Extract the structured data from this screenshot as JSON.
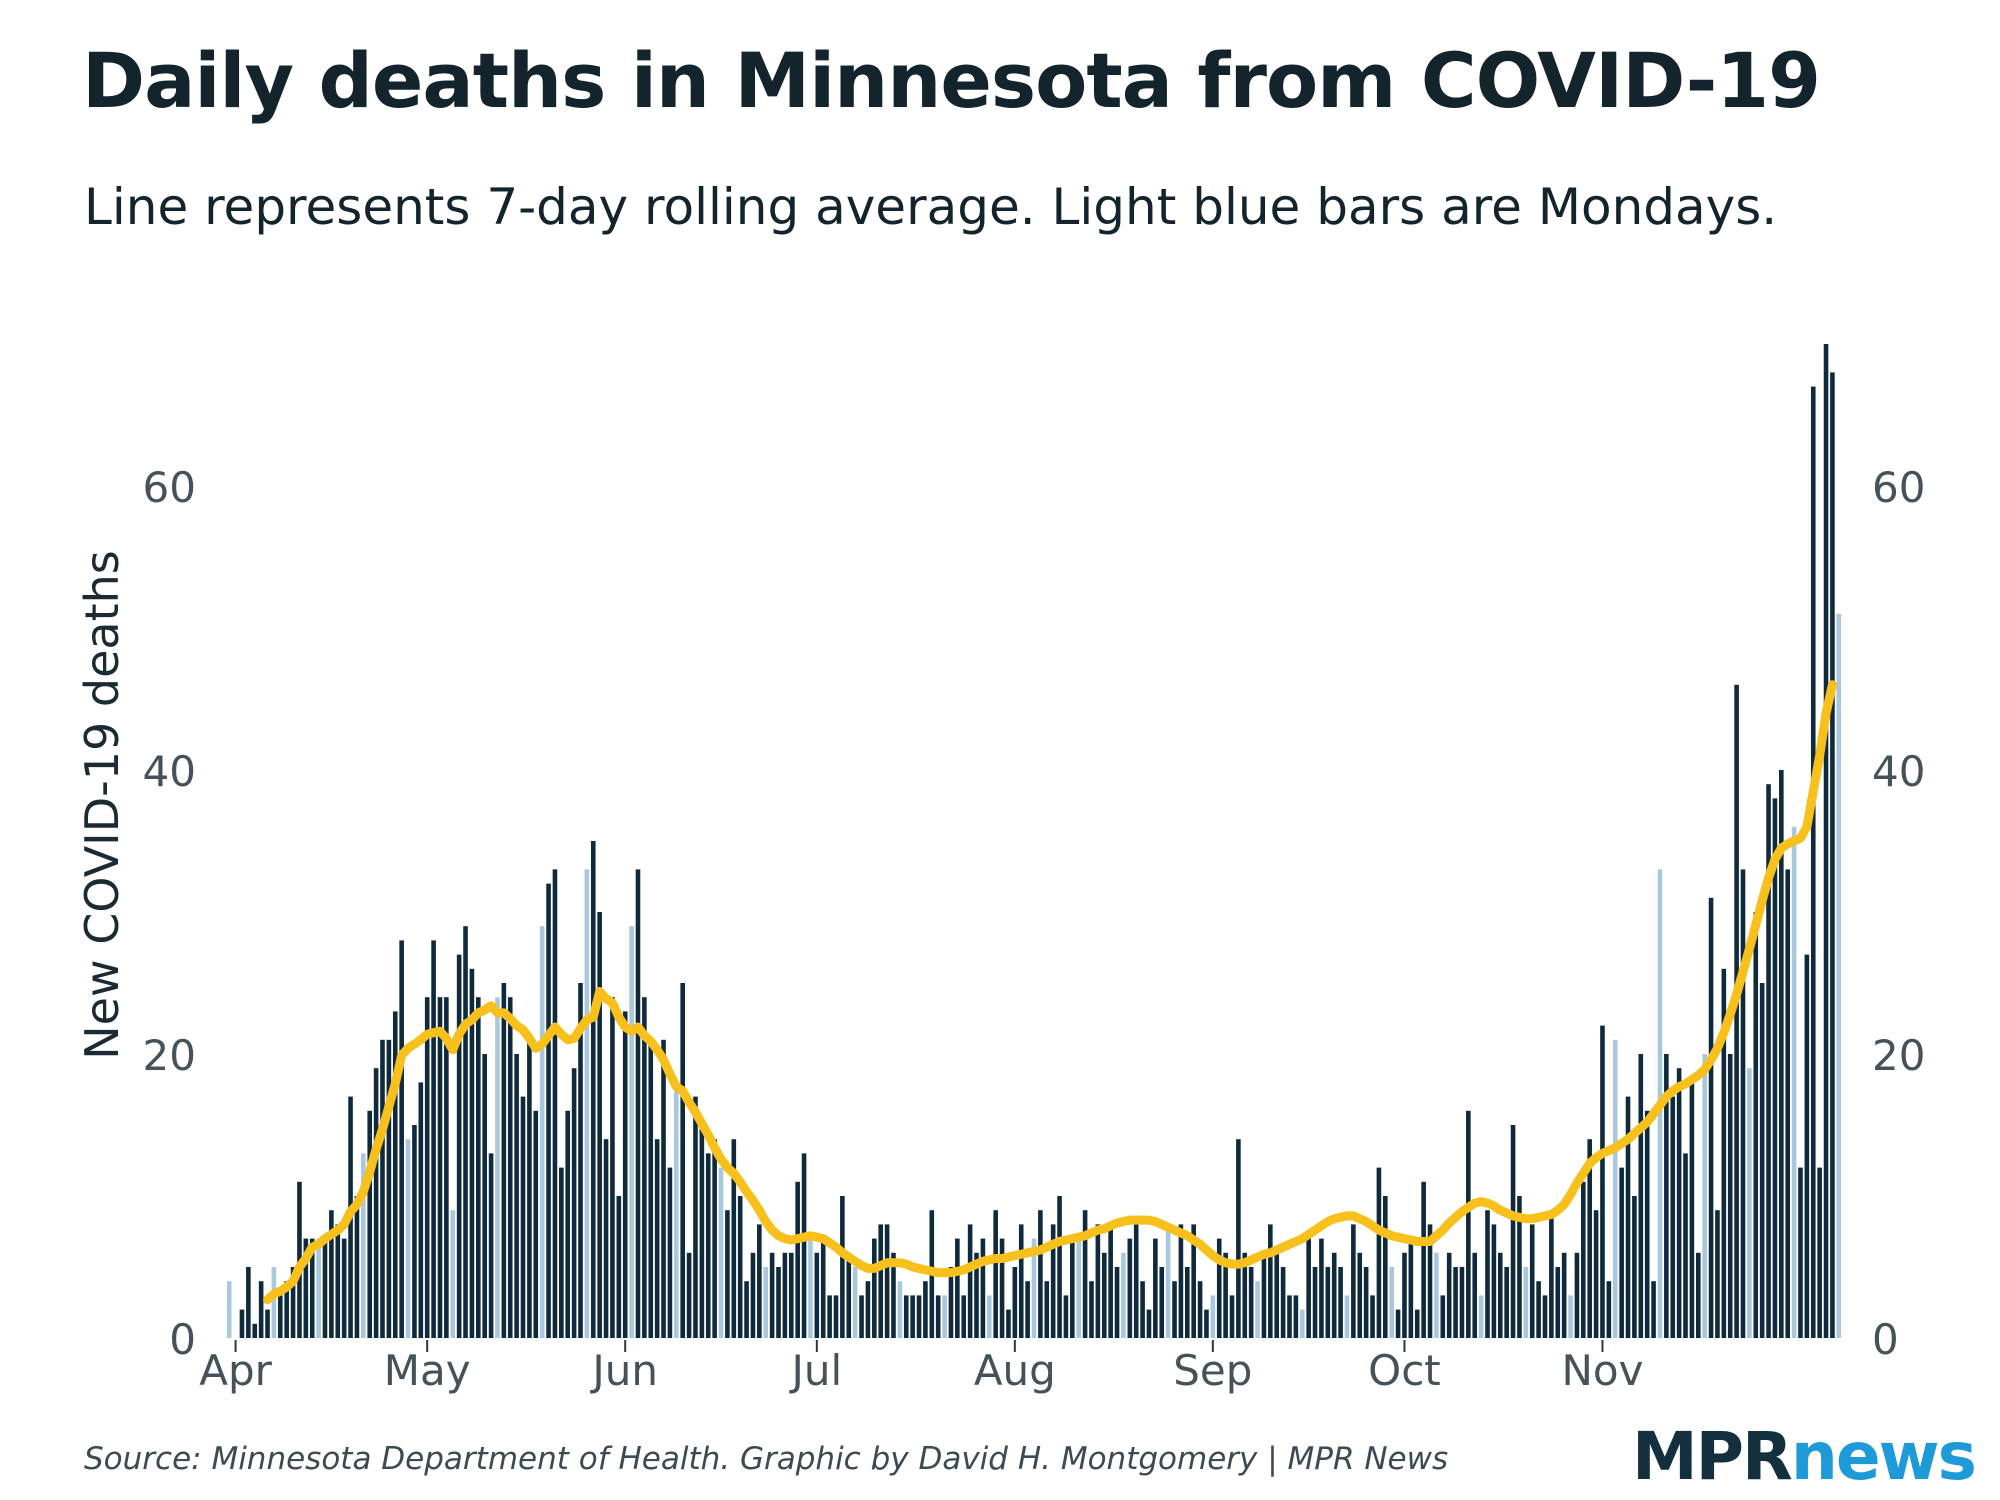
{
  "chart_data": {
    "type": "bar",
    "title": "Daily deaths in Minnesota from COVID-19",
    "subtitle": "Line represents 7-day rolling average. Light blue bars are Mondays.",
    "ylabel": "New COVID-19 deaths",
    "xlabel": "",
    "ylim": [
      0,
      72
    ],
    "yticks": [
      0,
      20,
      40,
      60
    ],
    "xticks": [
      {
        "label": "Apr",
        "day": 1
      },
      {
        "label": "May",
        "day": 31
      },
      {
        "label": "Jun",
        "day": 62
      },
      {
        "label": "Jul",
        "day": 92
      },
      {
        "label": "Aug",
        "day": 123
      },
      {
        "label": "Sep",
        "day": 154
      },
      {
        "label": "Oct",
        "day": 184
      },
      {
        "label": "Nov",
        "day": 215
      }
    ],
    "start_date": "Mar 30",
    "first_monday_index": 0,
    "series": [
      {
        "name": "Daily deaths",
        "type": "bar",
        "values": [
          4,
          0,
          2,
          5,
          1,
          4,
          2,
          5,
          3,
          4,
          5,
          11,
          7,
          7,
          7,
          7,
          9,
          8,
          7,
          17,
          10,
          13,
          16,
          19,
          21,
          21,
          23,
          28,
          14,
          15,
          18,
          24,
          28,
          24,
          24,
          9,
          27,
          29,
          26,
          24,
          20,
          13,
          24,
          25,
          24,
          20,
          17,
          21,
          16,
          29,
          32,
          33,
          12,
          16,
          19,
          25,
          33,
          35,
          30,
          14,
          24,
          10,
          23,
          29,
          33,
          24,
          21,
          14,
          21,
          12,
          18,
          25,
          6,
          17,
          15,
          13,
          14,
          12,
          9,
          14,
          10,
          4,
          6,
          8,
          5,
          6,
          5,
          6,
          6,
          11,
          13,
          7,
          6,
          7,
          3,
          3,
          10,
          6,
          5,
          3,
          4,
          7,
          8,
          8,
          6,
          4,
          3,
          3,
          3,
          4,
          9,
          3,
          3,
          5,
          7,
          3,
          8,
          6,
          7,
          3,
          9,
          7,
          2,
          5,
          8,
          4,
          7,
          9,
          4,
          8,
          10,
          3,
          7,
          7,
          9,
          4,
          8,
          6,
          8,
          5,
          6,
          7,
          8,
          4,
          2,
          7,
          5,
          8,
          4,
          8,
          5,
          8,
          4,
          2,
          3,
          7,
          6,
          3,
          14,
          6,
          5,
          4,
          6,
          8,
          6,
          5,
          3,
          3,
          2,
          7,
          5,
          7,
          5,
          6,
          5,
          3,
          8,
          6,
          5,
          3,
          12,
          10,
          5,
          2,
          6,
          7,
          2,
          11,
          8,
          6,
          3,
          6,
          5,
          5,
          16,
          6,
          3,
          9,
          8,
          6,
          5,
          15,
          10,
          5,
          8,
          4,
          3,
          9,
          5,
          6,
          3,
          6,
          11,
          14,
          9,
          22,
          4,
          21,
          12,
          17,
          10,
          20,
          16,
          4,
          33,
          20,
          17,
          19,
          13,
          18,
          6,
          20,
          31,
          9,
          26,
          20,
          46,
          33,
          19,
          30,
          25,
          39,
          38,
          40,
          33,
          36,
          12,
          27,
          67,
          12,
          70,
          68,
          51
        ]
      },
      {
        "name": "7-day rolling average",
        "type": "line",
        "color": "#f7c01d",
        "values": [
          null,
          null,
          null,
          null,
          null,
          null,
          2.7,
          3.1,
          3.3,
          3.6,
          4.0,
          5.0,
          5.6,
          6.4,
          6.6,
          7.0,
          7.3,
          7.6,
          8.0,
          8.9,
          9.4,
          10.3,
          11.7,
          13.3,
          14.7,
          16.3,
          17.9,
          19.9,
          20.4,
          20.7,
          21.0,
          21.4,
          21.5,
          21.6,
          21.1,
          20.3,
          21.4,
          22.1,
          22.4,
          22.9,
          23.1,
          23.4,
          22.9,
          22.9,
          22.5,
          22.0,
          21.7,
          21.1,
          20.4,
          20.7,
          21.3,
          21.9,
          21.4,
          21.0,
          21.1,
          21.8,
          22.4,
          22.6,
          24.4,
          23.9,
          23.6,
          22.6,
          21.9,
          21.6,
          21.9,
          21.3,
          20.9,
          20.3,
          19.6,
          18.6,
          17.7,
          17.4,
          16.6,
          15.9,
          15.1,
          14.3,
          13.4,
          12.6,
          12.0,
          11.6,
          11.0,
          10.3,
          9.7,
          9.0,
          8.2,
          7.6,
          7.2,
          7.0,
          6.9,
          7.0,
          7.1,
          7.2,
          7.1,
          7.0,
          6.7,
          6.4,
          6.0,
          5.7,
          5.4,
          5.1,
          4.9,
          4.9,
          5.1,
          5.3,
          5.3,
          5.3,
          5.2,
          5.0,
          4.9,
          4.8,
          4.7,
          4.6,
          4.6,
          4.6,
          4.7,
          4.8,
          5.0,
          5.2,
          5.4,
          5.5,
          5.6,
          5.6,
          5.7,
          5.8,
          5.9,
          6.0,
          6.1,
          6.2,
          6.4,
          6.6,
          6.8,
          6.9,
          7.0,
          7.1,
          7.2,
          7.4,
          7.6,
          7.7,
          7.9,
          8.1,
          8.2,
          8.3,
          8.3,
          8.3,
          8.3,
          8.2,
          8.0,
          7.8,
          7.6,
          7.4,
          7.2,
          6.9,
          6.6,
          6.2,
          5.8,
          5.5,
          5.3,
          5.2,
          5.2,
          5.3,
          5.5,
          5.7,
          5.9,
          6.0,
          6.2,
          6.4,
          6.6,
          6.8,
          7.0,
          7.3,
          7.6,
          7.9,
          8.2,
          8.4,
          8.5,
          8.6,
          8.6,
          8.4,
          8.2,
          7.9,
          7.6,
          7.4,
          7.2,
          7.1,
          7.0,
          6.9,
          6.8,
          6.8,
          6.8,
          7.2,
          7.6,
          8.1,
          8.5,
          8.9,
          9.2,
          9.5,
          9.6,
          9.5,
          9.3,
          9.0,
          8.8,
          8.6,
          8.5,
          8.4,
          8.4,
          8.5,
          8.6,
          8.7,
          9.0,
          9.4,
          10.1,
          10.9,
          11.6,
          12.3,
          12.7,
          13.0,
          13.2,
          13.4,
          13.7,
          14.0,
          14.4,
          14.8,
          15.2,
          15.8,
          16.4,
          17.0,
          17.4,
          17.7,
          17.9,
          18.2,
          18.5,
          18.9,
          19.6,
          20.4,
          21.5,
          22.8,
          24.2,
          25.8,
          27.4,
          29.1,
          30.8,
          32.4,
          33.7,
          34.5,
          34.8,
          35.0,
          35.2,
          36.0,
          38.5,
          41.0,
          44.0,
          46.0
        ]
      }
    ],
    "bar_colors": {
      "weekday": "#0f2a3c",
      "monday": "#a9c7dd"
    },
    "line_color": "#f7c01d",
    "axis_text_color": "#46525a"
  },
  "footer": {
    "source": "Source: Minnesota Department of Health. Graphic by David H. Montgomery | MPR News",
    "logo_part1": "MPR",
    "logo_part2": "news"
  }
}
